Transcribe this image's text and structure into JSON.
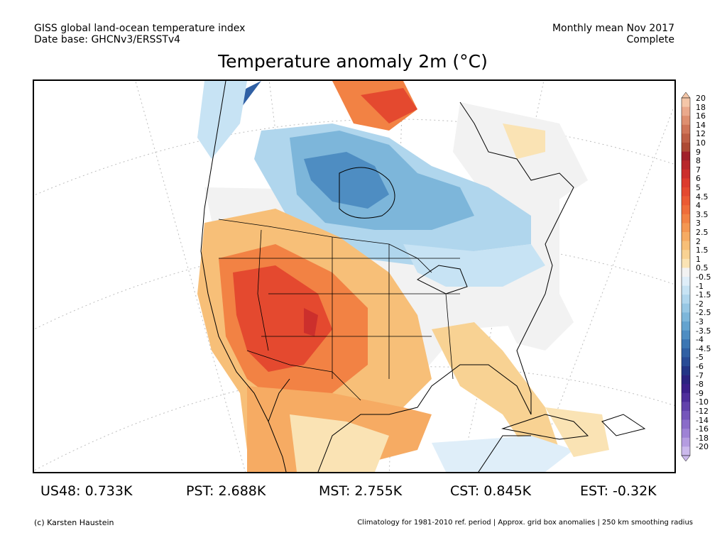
{
  "header": {
    "left_line1": "GISS global land-ocean temperature index",
    "left_line2": "Date base: GHCNv3/ERSSTv4",
    "right_line1": "Monthly mean Nov 2017",
    "right_line2": "Complete"
  },
  "title": "Temperature anomaly 2m (°C)",
  "legend": {
    "labels": [
      "20",
      "18",
      "16",
      "14",
      "12",
      "10",
      "9",
      "8",
      "7",
      "6",
      "5",
      "4.5",
      "4",
      "3.5",
      "3",
      "2.5",
      "2",
      "1.5",
      "1",
      "0.5",
      "-0.5",
      "-1",
      "-1.5",
      "-2",
      "-2.5",
      "-3",
      "-3.5",
      "-4",
      "-4.5",
      "-5",
      "-6",
      "-7",
      "-8",
      "-9",
      "-10",
      "-12",
      "-14",
      "-16",
      "-18",
      "-20"
    ],
    "colors": [
      "#f4c6a8",
      "#eaa98c",
      "#de8f70",
      "#cf7558",
      "#be5f45",
      "#ad4a34",
      "#a1212a",
      "#b8272b",
      "#cc2f2c",
      "#dc3b2d",
      "#e4492f",
      "#eb5a33",
      "#ef6d3a",
      "#f28244",
      "#f49752",
      "#f6ab63",
      "#f7bf78",
      "#f8d293",
      "#fae3b4",
      "#f2f2f2",
      "#dfeef9",
      "#c7e3f4",
      "#b0d6ed",
      "#97c7e4",
      "#7db6da",
      "#64a3cf",
      "#4e8dc2",
      "#3c76b3",
      "#3060a4",
      "#284b96",
      "#233586",
      "#2b2380",
      "#3b1f8a",
      "#4e2e9b",
      "#6242ab",
      "#7556bb",
      "#8a6bc9",
      "#9e82d5",
      "#b49ce0",
      "#cbb9ec"
    ]
  },
  "map": {
    "land_color": "#ffffff",
    "no_data_color": "#ffffff"
  },
  "stats": [
    {
      "label": "US48: 0.733K"
    },
    {
      "label": "PST: 2.688K"
    },
    {
      "label": "MST: 2.755K"
    },
    {
      "label": "CST: 0.845K"
    },
    {
      "label": "EST: -0.32K"
    }
  ],
  "footer": {
    "left": "(c) Karsten Haustein",
    "right": "Climatology for 1981-2010 ref. period | Approx. grid box anomalies | 250 km smoothing radius"
  }
}
